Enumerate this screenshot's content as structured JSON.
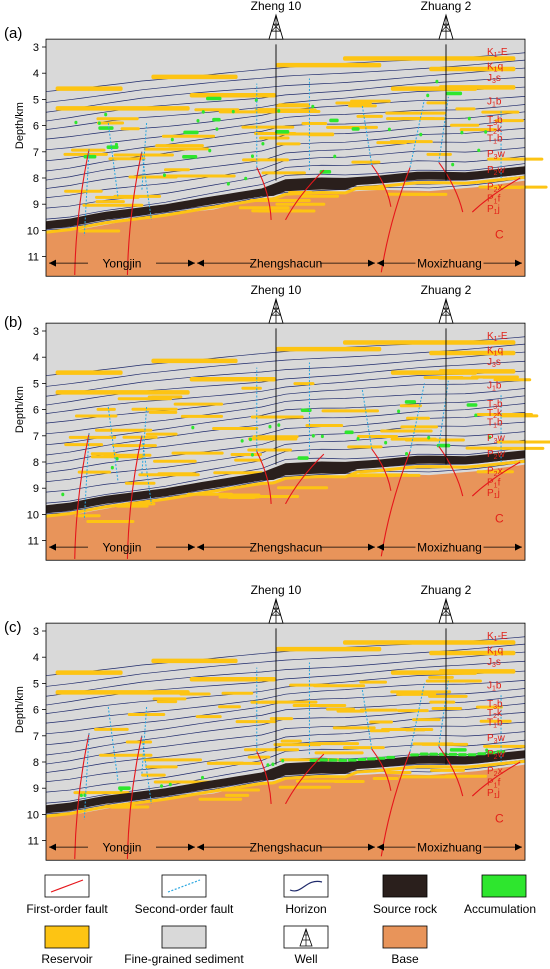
{
  "panels": [
    {
      "label": "(a)",
      "accumulation_level": 3
    },
    {
      "label": "(b)",
      "accumulation_level": 2
    },
    {
      "label": "(c)",
      "accumulation_level": 1
    }
  ],
  "y_axis": {
    "label": "Depth/km",
    "ticks": [
      "3",
      "4",
      "5",
      "6",
      "7",
      "8",
      "9",
      "10",
      "11"
    ]
  },
  "wells": [
    {
      "name": "Zheng 10"
    },
    {
      "name": "Zhuang 2"
    }
  ],
  "regions": [
    {
      "name": "Yongjin"
    },
    {
      "name": "Zhengshacun"
    },
    {
      "name": "Moxizhuang"
    }
  ],
  "strata": [
    {
      "html": "K<tspan font-size='7' dy='2'>1</tspan><tspan dy='-2'>-E</tspan>"
    },
    {
      "html": "K<tspan font-size='7' dy='2'>1</tspan><tspan dy='-2'>q</tspan>"
    },
    {
      "html": "J<tspan font-size='7' dy='2'>3</tspan><tspan dy='-2'>s</tspan>"
    },
    {
      "html": "J<tspan font-size='7' dy='2'>1</tspan><tspan dy='-2'>b</tspan>"
    },
    {
      "html": "T<tspan font-size='7' dy='2'>3</tspan><tspan dy='-2'>b</tspan>"
    },
    {
      "html": "T<tspan font-size='7' dy='2'>2</tspan><tspan dy='-2'>k</tspan>"
    },
    {
      "html": "T<tspan font-size='7' dy='2'>1</tspan><tspan dy='-2'>b</tspan>"
    },
    {
      "html": "P<tspan font-size='7' dy='2'>3</tspan><tspan dy='-2'>w</tspan>"
    },
    {
      "html": "P<tspan font-size='7' dy='2'>2</tspan><tspan dy='-2'>w</tspan>"
    },
    {
      "html": "P<tspan font-size='7' dy='2'>2</tspan><tspan dy='-2'>x</tspan>"
    },
    {
      "html": "P<tspan font-size='7' dy='2'>1</tspan><tspan dy='-2'>f</tspan>"
    },
    {
      "html": "P<tspan font-size='7' dy='2'>1</tspan><tspan dy='-2'>j</tspan>"
    }
  ],
  "base_label": "C",
  "legend": [
    {
      "label": "First-order fault",
      "icon": "first-order-fault-icon"
    },
    {
      "label": "Second-order fault",
      "icon": "second-order-fault-icon"
    },
    {
      "label": "Horizon",
      "icon": "horizon-icon"
    },
    {
      "label": "Source rock",
      "icon": "source-rock-icon"
    },
    {
      "label": "Accumulation",
      "icon": "accumulation-icon"
    },
    {
      "label": "Reservoir",
      "icon": "reservoir-icon"
    },
    {
      "label": "Fine-grained sediment",
      "icon": "fine-grained-sediment-icon"
    },
    {
      "label": "Well",
      "icon": "well-icon"
    },
    {
      "label": "Base",
      "icon": "base-icon"
    }
  ],
  "colors": {
    "sediment": "#d9d9d9",
    "base": "#e8945a",
    "source_rock": "#2a1f1c",
    "reservoir": "#fdc413",
    "accumulation": "#2ee62e",
    "horizon": "#1f2a6b",
    "first_order_fault": "#e5161b",
    "second_order_fault": "#29a6e0",
    "strat_text": "#e32119"
  }
}
